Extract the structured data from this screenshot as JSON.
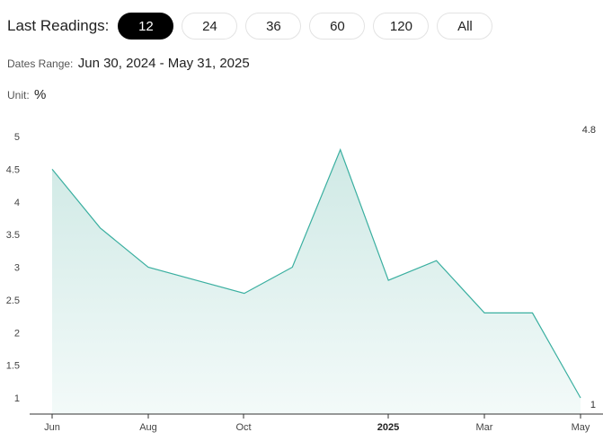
{
  "toolbar": {
    "label": "Last Readings:",
    "options": [
      "12",
      "24",
      "36",
      "60",
      "120",
      "All"
    ],
    "active_index": 0
  },
  "dates_range": {
    "label": "Dates Range:",
    "value": "Jun 30, 2024 - May 31, 2025"
  },
  "unit": {
    "label": "Unit:",
    "value": "%"
  },
  "colors": {
    "line": "#3aafa0",
    "fill_top": "#cfe9e5",
    "fill_bottom": "#f3faf9",
    "active_pill": "#000000"
  },
  "chart_data": {
    "type": "area",
    "x": [
      "2024-06-30",
      "2024-07-31",
      "2024-08-31",
      "2024-09-30",
      "2024-10-31",
      "2024-11-30",
      "2024-12-31",
      "2025-01-31",
      "2025-02-28",
      "2025-03-31",
      "2025-04-30",
      "2025-05-31"
    ],
    "values": [
      4.5,
      3.6,
      3.0,
      2.8,
      2.6,
      3.0,
      4.8,
      2.8,
      3.1,
      2.3,
      2.3,
      1.0
    ],
    "ylim": [
      0.8,
      5.2
    ],
    "yticks": [
      "1",
      "1.5",
      "2",
      "2.5",
      "3",
      "3.5",
      "4",
      "4.5",
      "5"
    ],
    "xticks": [
      {
        "label": "Jun",
        "bold": false
      },
      {
        "label": "Aug",
        "bold": false
      },
      {
        "label": "Oct",
        "bold": false
      },
      {
        "label": "2025",
        "bold": true
      },
      {
        "label": "Mar",
        "bold": false
      },
      {
        "label": "May",
        "bold": false
      }
    ],
    "max_label": "4.8",
    "last_label": "1",
    "grid": false
  }
}
